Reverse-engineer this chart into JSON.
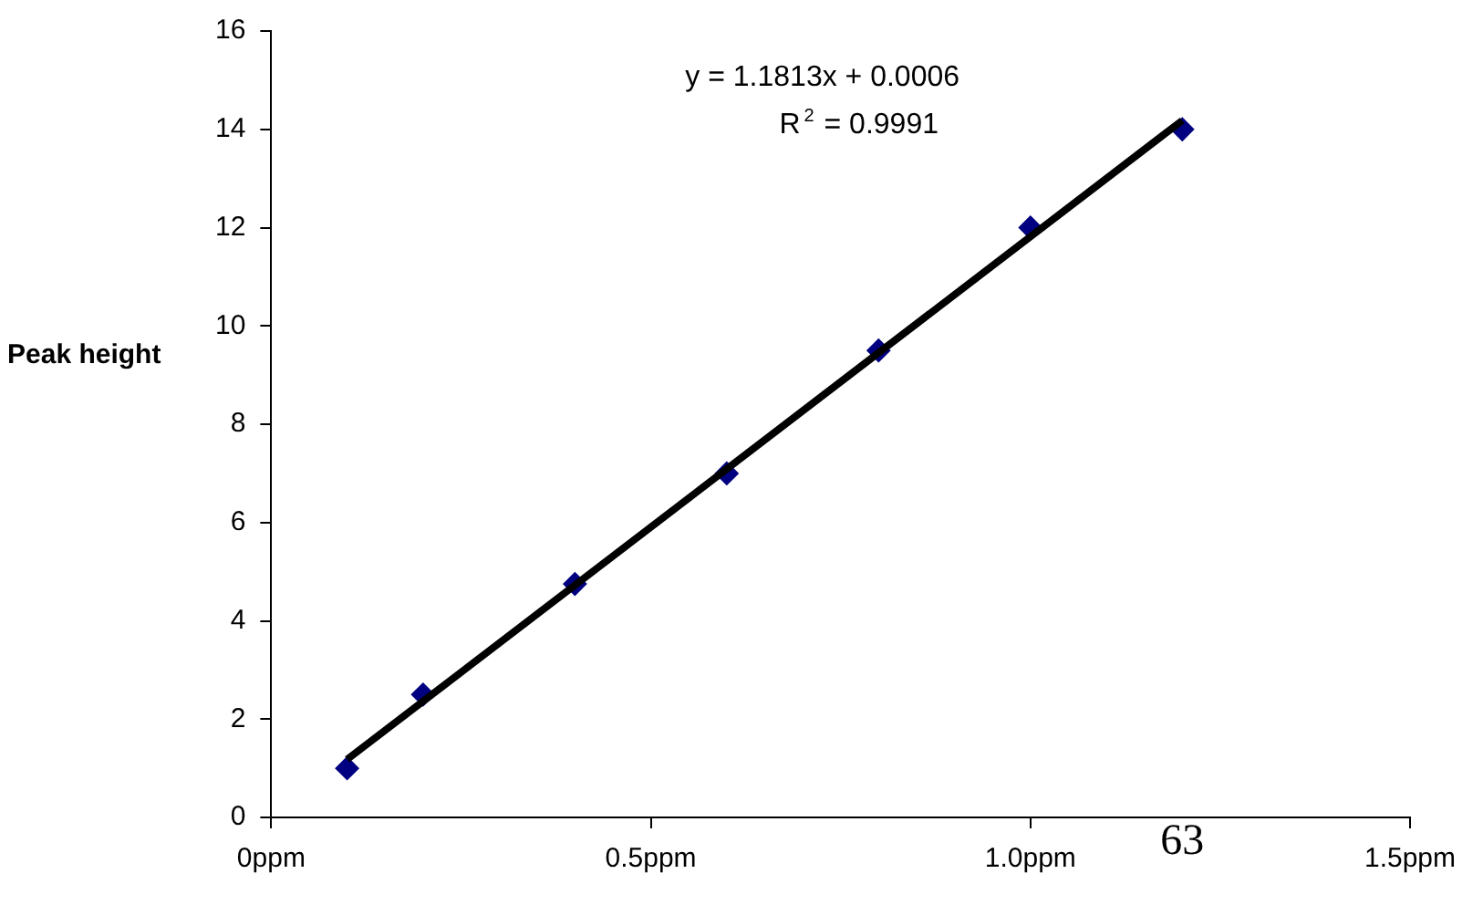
{
  "chart_data": {
    "type": "scatter",
    "ylabel": "Peak height",
    "xlim": [
      0,
      1.5
    ],
    "xticks": [
      {
        "value": 0,
        "label": "0ppm"
      },
      {
        "value": 0.5,
        "label": "0.5ppm"
      },
      {
        "value": 1,
        "label": "1.0ppm"
      },
      {
        "value": 1.5,
        "label": "1.5ppm"
      }
    ],
    "ylim": [
      0,
      16
    ],
    "yticks": [
      0,
      2,
      4,
      6,
      8,
      10,
      12,
      14,
      16
    ],
    "series": [
      {
        "type": "scatter",
        "color": "#000080",
        "x": [
          0.1,
          0.2,
          0.4,
          0.6,
          0.8,
          1.0,
          1.2
        ],
        "values": [
          1,
          2.5,
          4.75,
          7,
          9.5,
          12,
          14
        ],
        "marker": "diamond"
      },
      {
        "type": "line",
        "color": "#000000",
        "x": [
          0.1,
          1.2
        ],
        "values": [
          1.18,
          14.18
        ],
        "marker": "none",
        "line_style": "solid"
      }
    ],
    "annotations": [
      "y = 1.1813x + 0.0006",
      "R$^{2}$ = 0.9991",
      "63"
    ],
    "grid": false,
    "legend": false
  }
}
